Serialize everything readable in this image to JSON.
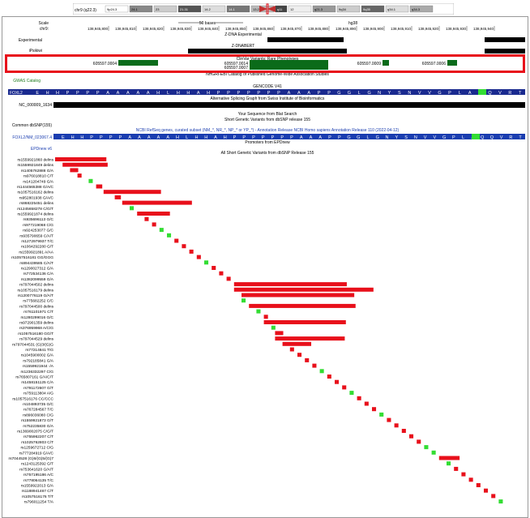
{
  "colors": {
    "highlight": "#e8101b",
    "green_bar": "#0b6b1a",
    "snp_red": "#e8101b",
    "snp_green": "#33dd33",
    "gene_blue": "#1a2a8f",
    "epd_blue": "#1a3db0",
    "gwas_green": "#1b7a1b"
  },
  "ideogram": {
    "bands": [
      "chr9 (q22.3)",
      "9p24.3",
      "24.1",
      "23",
      "21.31",
      "14.2",
      "14.1",
      "13.2",
      "q11",
      "12",
      "q21.3",
      "9q34",
      "9q35",
      "q34.1",
      "q34.3"
    ]
  },
  "ruler": {
    "scale_label": "Scale",
    "chrom_label": "chr9:",
    "scale_text": "50 bases",
    "assembly": "hg38",
    "ticks": [
      "138,945,800",
      "138,945,810",
      "138,945,820",
      "138,945,830",
      "138,945,840",
      "138,945,850",
      "138,945,860",
      "138,945,870",
      "138,945,880",
      "138,945,890",
      "138,945,900",
      "138,945,910",
      "138,945,920",
      "138,945,930",
      "138,945,940"
    ]
  },
  "tracks": {
    "experimental_label": "Experimental",
    "zdna_exp_title": "Z-DNA Experimental",
    "ipsikiwi_label": "iPsikiwi",
    "zdnabert_title": "Z-DNABERT",
    "clinvar_title": "ClinVar Variants: Rare Phenotypes",
    "clinvar_items": [
      "605597.0004",
      "605597.0014",
      "605597.0007",
      "605597.0009",
      "605597.0006"
    ],
    "gwas_title": "NHGRI-EBI Catalog of Published Genome-Wide Association Studies",
    "gwas_label": "GWAS Catalog",
    "gencode_title": "GENCODE V41",
    "gene_label": "FOXL2",
    "aa_seq": [
      "E",
      "H",
      "H",
      "P",
      "P",
      "P",
      "P",
      "A",
      "A",
      "A",
      "A",
      "A",
      "H",
      "L",
      "H",
      "H",
      "A",
      "H",
      "P",
      "P",
      "P",
      "P",
      "P",
      "P",
      "P",
      "A",
      "A",
      "A",
      "P",
      "P",
      "G",
      "G",
      "L",
      "G",
      "N",
      "Y",
      "S",
      "N",
      "V",
      "V",
      "G",
      "P",
      "L",
      "A",
      "Q",
      "Q",
      "V",
      "R",
      "T"
    ],
    "alt_splice_title": "Alternative Splicing Graph from Swiss Institute of Bioinformatics",
    "nc_label": "NC_000009_1634",
    "blat_title": "Your Sequence from Blat Search",
    "short_gen_title": "Short Genetic Variants from dbSNP release 155",
    "common_label": "Common dbSNP(155)",
    "refseq_title": "NCBI RefSeq genes, curated subset (NM_*, NR_*, NP_* or YP_*) - Annotation Release NCBI Homo sapiens Annotation Release 110 (2022-04-12)",
    "refseq_label": "FOXL2/NM_023067.4",
    "epd_title": "Promoters from EPDnew",
    "epd_label": "EPDnew v6",
    "allsnp_title": "All Short Genetic Variants from dbSNP Release 155"
  },
  "snps": [
    [
      "rs1559921860 delins",
      0,
      0,
      25,
      "r"
    ],
    [
      "rs1559921849 delins",
      0,
      2,
      22,
      "r"
    ],
    [
      "rs1405762888 G/A",
      0,
      4,
      4,
      "r"
    ],
    [
      "rs976018810 C/T",
      0,
      6,
      2,
      "r"
    ],
    [
      "rs141204749 G/A",
      0,
      9,
      2,
      "g"
    ],
    [
      "rs1444565388 G/A/C",
      0,
      11,
      3,
      "r"
    ],
    [
      "rs1057516162 delins",
      0,
      13,
      28,
      "r"
    ],
    [
      "rs952801938 G/A/C",
      0,
      16,
      3,
      "r"
    ],
    [
      "rs868225451 delins",
      0,
      18,
      34,
      "r"
    ],
    [
      "rs1245658278 C/G/T",
      0,
      20,
      2,
      "g"
    ],
    [
      "rs1559921874 delins",
      0,
      22,
      16,
      "r"
    ],
    [
      "rs935696113 G/C",
      0,
      24,
      2,
      "r"
    ],
    [
      "rs977219068 C/G",
      0,
      26,
      2,
      "r"
    ],
    [
      "rs924253077 G/C",
      0,
      28,
      2,
      "g"
    ],
    [
      "rs935790659 C/A/T",
      0,
      30,
      2,
      "g"
    ],
    [
      "rs1272979937 T/C",
      0,
      32,
      2,
      "r"
    ],
    [
      "rs1064292280 G/T",
      0,
      34,
      2,
      "r"
    ],
    [
      "rs1559921891 A/AA",
      0,
      36,
      2,
      "r"
    ],
    [
      "rs1057516181 GG/GGG",
      0,
      38,
      2,
      "r"
    ],
    [
      "rs894439585 C/A/T",
      0,
      40,
      2,
      "g"
    ],
    [
      "rs1290027312 G/A",
      0,
      42,
      2,
      "r"
    ],
    [
      "rs772534136 C/A",
      0,
      44,
      2,
      "r"
    ],
    [
      "rs1382099559 G/A",
      0,
      46,
      2,
      "r"
    ],
    [
      "rs797044502 delins",
      0,
      48,
      55,
      "r"
    ],
    [
      "rs1057516179 delins",
      0,
      48,
      68,
      "r"
    ],
    [
      "rs1200776119 G/A/T",
      0,
      50,
      55,
      "r"
    ],
    [
      "rs775682252 C/C",
      0,
      50,
      2,
      "g"
    ],
    [
      "rs797044500 delins",
      0,
      52,
      52,
      "r"
    ],
    [
      "rs761101971 C/T",
      0,
      54,
      2,
      "g"
    ],
    [
      "rs1280299016 G/C",
      0,
      56,
      2,
      "r"
    ],
    [
      "rs972901359 delins",
      0,
      56,
      40,
      "r"
    ],
    [
      "rs376959968 A/C/G",
      0,
      58,
      2,
      "g"
    ],
    [
      "rs1057516180 GG/T",
      0,
      59,
      4,
      "r"
    ],
    [
      "rs797044529 delins",
      0,
      59,
      34,
      "r"
    ],
    [
      "rs797044531 (G)3/(G)G",
      0,
      61,
      14,
      "r"
    ],
    [
      "rs77214841 T/G",
      0,
      63,
      2,
      "r"
    ],
    [
      "rs1045900002 G/A",
      0,
      65,
      2,
      "r"
    ],
    [
      "rs792185841 G/A",
      0,
      67,
      2,
      "r"
    ],
    [
      "rs1559921944 -/A",
      0,
      69,
      2,
      "r"
    ],
    [
      "rs1236332297 C/G",
      0,
      71,
      2,
      "g"
    ],
    [
      "rs765807161 G/A/C/T",
      0,
      73,
      2,
      "r"
    ],
    [
      "rs1458151125 C/A",
      0,
      75,
      2,
      "r"
    ],
    [
      "rs791172607 G/T",
      0,
      77,
      2,
      "r"
    ],
    [
      "rs759113804 A/G",
      0,
      79,
      2,
      "g"
    ],
    [
      "rs1057516176 CC/CCC",
      0,
      81,
      2,
      "r"
    ],
    [
      "rs104893735 G/C",
      0,
      83,
      2,
      "r"
    ],
    [
      "rs767284567 T/C",
      0,
      85,
      2,
      "r"
    ],
    [
      "rs896036080 C/G",
      0,
      87,
      2,
      "g"
    ],
    [
      "rs1559921873 G/T",
      0,
      89,
      2,
      "r"
    ],
    [
      "rs752235830 G/A",
      0,
      91,
      2,
      "r"
    ],
    [
      "rs1369002075 C/G/T",
      0,
      93,
      2,
      "r"
    ],
    [
      "rs755962207 C/T",
      0,
      95,
      2,
      "r"
    ],
    [
      "rs1025762803 C/T",
      0,
      97,
      2,
      "r"
    ],
    [
      "rs1259672712 C/G",
      0,
      99,
      2,
      "g"
    ],
    [
      "rs777284919 G/A/C",
      0,
      101,
      2,
      "g"
    ],
    [
      "rs7044528 (G)6/(G)5/(G)7",
      0,
      103,
      10,
      "r"
    ],
    [
      "rs1243125392 G/T",
      0,
      105,
      2,
      "g"
    ],
    [
      "rs753641620 G/A/T",
      0,
      107,
      2,
      "r"
    ],
    [
      "rs757195186 A/C",
      0,
      109,
      2,
      "r"
    ],
    [
      "rs778064135 T/C",
      0,
      111,
      2,
      "r"
    ],
    [
      "rs1559922013 G/A",
      0,
      113,
      2,
      "r"
    ],
    [
      "rs1188941467 C/T",
      0,
      115,
      2,
      "r"
    ],
    [
      "rs1057516176 T/T",
      0,
      117,
      2,
      "r"
    ],
    [
      "rs796011254 T/A",
      0,
      119,
      2,
      "g"
    ]
  ]
}
